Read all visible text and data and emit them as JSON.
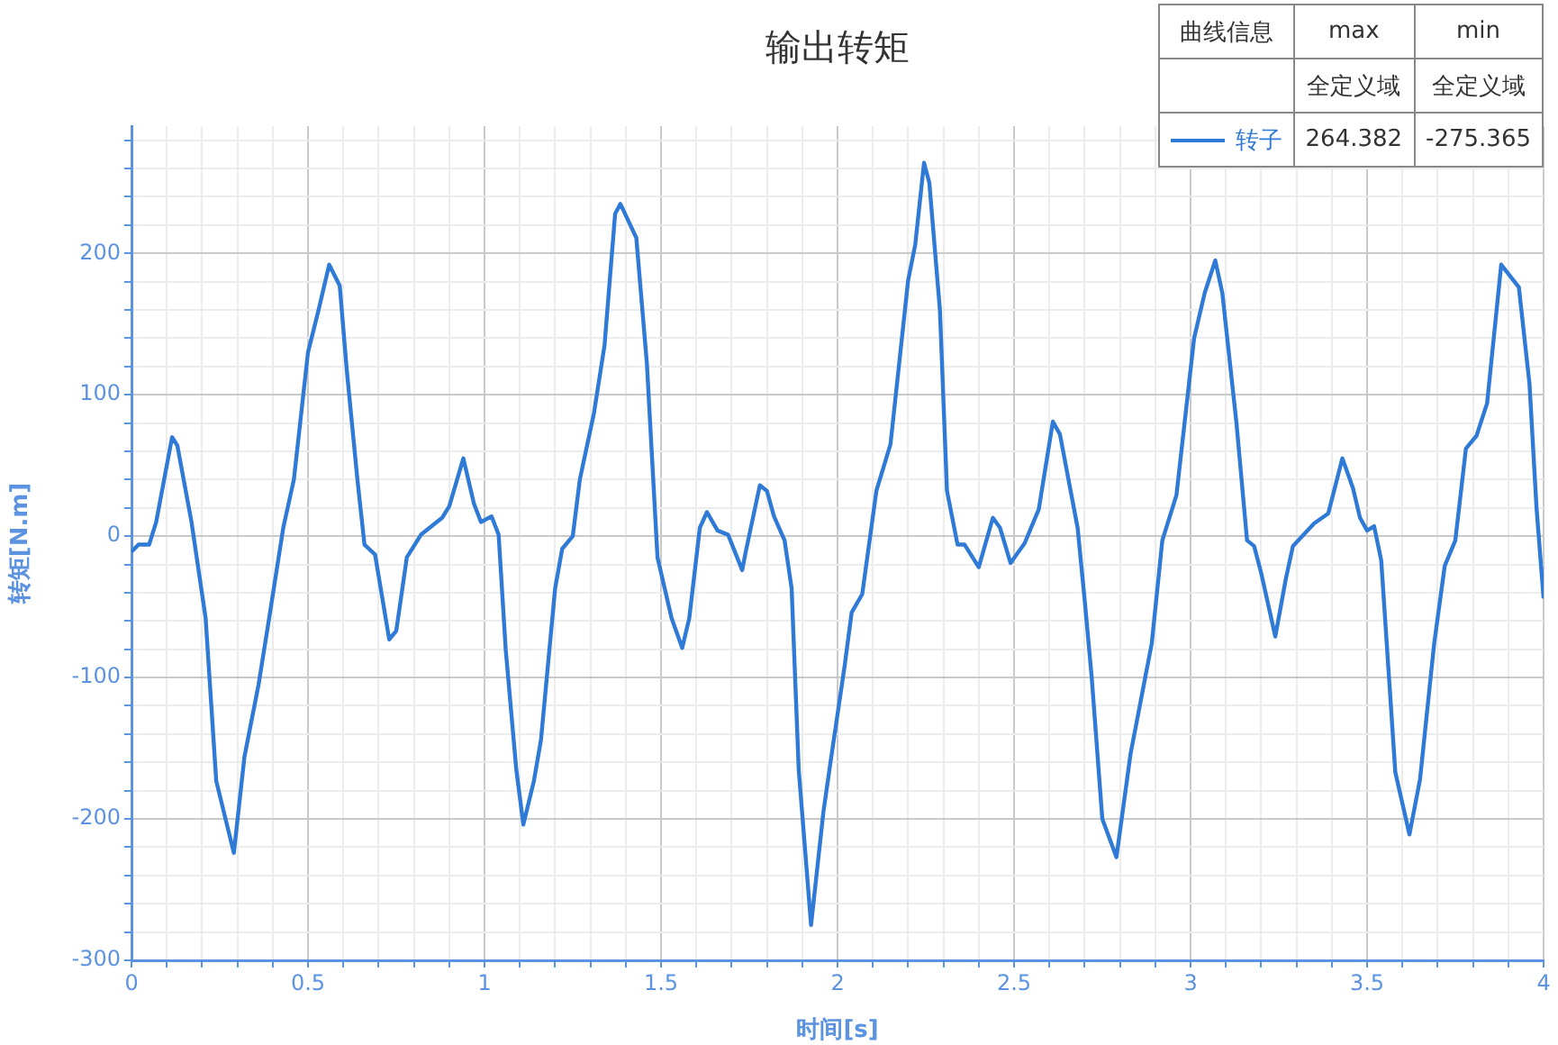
{
  "chart_data": {
    "type": "line",
    "title": "输出转矩",
    "xlabel": "时间[s]",
    "ylabel": "转矩[N.m]",
    "annotations": [
      "曲线信息",
      "max",
      "min",
      "全定义域",
      "全定义域",
      "264.382",
      "-275.365"
    ],
    "legend": "top right",
    "grid": true,
    "marker": "none",
    "line_style": "solid",
    "xlim": [
      0,
      4
    ],
    "ylim": [
      -300,
      290
    ],
    "xticks": [
      0,
      {
        "value": 0.1,
        "label": null
      },
      {
        "value": 0.2,
        "label": null
      },
      {
        "value": 0.3,
        "label": null
      },
      {
        "value": 0.4,
        "label": null
      },
      0.5,
      {
        "value": 0.6,
        "label": null
      },
      {
        "value": 0.7,
        "label": null
      },
      {
        "value": 0.8,
        "label": null
      },
      {
        "value": 0.9,
        "label": null
      },
      1,
      {
        "value": 1.1,
        "label": null
      },
      {
        "value": 1.2,
        "label": null
      },
      {
        "value": 1.3,
        "label": null
      },
      {
        "value": 1.4,
        "label": null
      },
      1.5,
      {
        "value": 1.6,
        "label": null
      },
      {
        "value": 1.7,
        "label": null
      },
      {
        "value": 1.8,
        "label": null
      },
      {
        "value": 1.9,
        "label": null
      },
      2,
      {
        "value": 2.1,
        "label": null
      },
      {
        "value": 2.2,
        "label": null
      },
      {
        "value": 2.3,
        "label": null
      },
      {
        "value": 2.4,
        "label": null
      },
      2.5,
      {
        "value": 2.6,
        "label": null
      },
      {
        "value": 2.7,
        "label": null
      },
      {
        "value": 2.8,
        "label": null
      },
      {
        "value": 2.9,
        "label": null
      },
      3,
      {
        "value": 3.1,
        "label": null
      },
      {
        "value": 3.2,
        "label": null
      },
      {
        "value": 3.3,
        "label": null
      },
      {
        "value": 3.4,
        "label": null
      },
      3.5,
      {
        "value": 3.6,
        "label": null
      },
      {
        "value": 3.7,
        "label": null
      },
      {
        "value": 3.8,
        "label": null
      },
      {
        "value": 3.9,
        "label": null
      },
      4
    ],
    "yticks": [
      -300,
      {
        "value": -280,
        "label": null
      },
      {
        "value": -260,
        "label": null
      },
      {
        "value": -240,
        "label": null
      },
      {
        "value": -220,
        "label": null
      },
      -200,
      {
        "value": -180,
        "label": null
      },
      {
        "value": -160,
        "label": null
      },
      {
        "value": -140,
        "label": null
      },
      {
        "value": -120,
        "label": null
      },
      -100,
      {
        "value": -80,
        "label": null
      },
      {
        "value": -60,
        "label": null
      },
      {
        "value": -40,
        "label": null
      },
      {
        "value": -20,
        "label": null
      },
      0,
      {
        "value": 20,
        "label": null
      },
      {
        "value": 40,
        "label": null
      },
      {
        "value": 60,
        "label": null
      },
      {
        "value": 80,
        "label": null
      },
      100,
      {
        "value": 120,
        "label": null
      },
      {
        "value": 140,
        "label": null
      },
      {
        "value": 160,
        "label": null
      },
      {
        "value": 180,
        "label": null
      },
      200,
      {
        "value": 220,
        "label": null
      },
      {
        "value": 240,
        "label": null
      },
      {
        "value": 260,
        "label": null
      },
      {
        "value": 280,
        "label": null
      }
    ],
    "series": [
      {
        "name": "转子",
        "color": "#2f7ad6",
        "x": [
          0.0,
          0.02,
          0.05,
          0.07,
          0.115,
          0.13,
          0.17,
          0.21,
          0.24,
          0.29,
          0.32,
          0.36,
          0.39,
          0.43,
          0.46,
          0.5,
          0.53,
          0.56,
          0.59,
          0.61,
          0.64,
          0.66,
          0.69,
          0.73,
          0.75,
          0.78,
          0.82,
          0.88,
          0.9,
          0.94,
          0.97,
          0.99,
          1.02,
          1.04,
          1.06,
          1.09,
          1.11,
          1.14,
          1.16,
          1.2,
          1.22,
          1.25,
          1.27,
          1.31,
          1.34,
          1.37,
          1.385,
          1.43,
          1.46,
          1.49,
          1.53,
          1.56,
          1.58,
          1.61,
          1.63,
          1.66,
          1.69,
          1.73,
          1.74,
          1.78,
          1.8,
          1.82,
          1.85,
          1.87,
          1.89,
          1.925,
          1.96,
          1.98,
          2.02,
          2.04,
          2.07,
          2.11,
          2.15,
          2.2,
          2.22,
          2.245,
          2.26,
          2.29,
          2.31,
          2.34,
          2.36,
          2.4,
          2.44,
          2.46,
          2.49,
          2.53,
          2.57,
          2.61,
          2.63,
          2.68,
          2.7,
          2.72,
          2.75,
          2.79,
          2.83,
          2.89,
          2.92,
          2.96,
          3.01,
          3.04,
          3.07,
          3.09,
          3.13,
          3.16,
          3.18,
          3.2,
          3.24,
          3.27,
          3.29,
          3.35,
          3.39,
          3.43,
          3.46,
          3.48,
          3.5,
          3.52,
          3.54,
          3.58,
          3.62,
          3.65,
          3.69,
          3.72,
          3.75,
          3.78,
          3.81,
          3.84,
          3.88,
          3.93,
          3.96,
          3.98,
          4.0
        ],
        "values": [
          -11,
          -6,
          -6,
          10,
          70,
          64,
          10,
          -58,
          -173,
          -224,
          -156,
          -105,
          -58,
          6,
          40,
          130,
          160,
          192,
          177,
          117,
          40,
          -6,
          -13,
          -73,
          -67,
          -15,
          1,
          13,
          21,
          55,
          23,
          10,
          14,
          1,
          -80,
          -165,
          -204,
          -173,
          -144,
          -37,
          -9,
          0,
          40,
          87,
          135,
          228,
          235,
          211,
          122,
          -15,
          -58,
          -79,
          -58,
          6,
          17,
          4,
          1,
          -24,
          -11,
          36,
          32,
          14,
          -3,
          -37,
          -165,
          -275,
          -195,
          -160,
          -92,
          -54,
          -41,
          32,
          65,
          181,
          206,
          264,
          250,
          160,
          32,
          -6,
          -6,
          -22,
          13,
          6,
          -19,
          -5,
          19,
          81,
          72,
          6,
          -45,
          -100,
          -200,
          -227,
          -154,
          -76,
          -3,
          29,
          140,
          172,
          195,
          172,
          80,
          -3,
          -7,
          -26,
          -71,
          -30,
          -7,
          9,
          16,
          55,
          34,
          13,
          4,
          7,
          -17,
          -167,
          -211,
          -172,
          -76,
          -21,
          -3,
          62,
          71,
          94,
          192,
          176,
          108,
          20,
          -44
        ]
      }
    ]
  }
}
